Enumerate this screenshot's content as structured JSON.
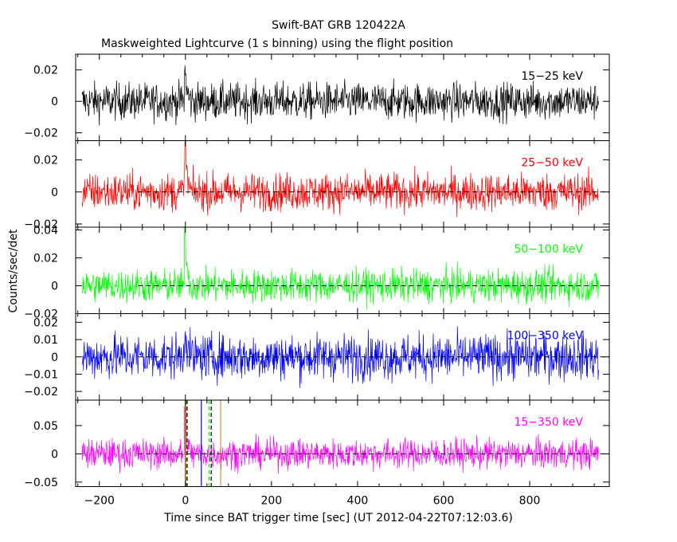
{
  "title": "Swift-BAT GRB 120422A",
  "subtitle": "Maskweighted Lightcurve (1 s binning) using the flight position",
  "chart_data": {
    "type": "line",
    "title": "Swift-BAT GRB 120422A",
    "subtitle": "Maskweighted Lightcurve (1 s binning) using the flight position",
    "xlabel": "Time since BAT trigger time [sec] (UT 2012-04-22T07:12:03.6)",
    "ylabel": "Counts/sec/det",
    "xlim": [
      -255,
      985
    ],
    "x_start": -240,
    "x_end": 960,
    "bin_width_sec": 1,
    "x_ticks": [
      -200,
      0,
      200,
      400,
      600,
      800
    ],
    "x_tick_labels": [
      "−200",
      "0",
      "200",
      "400",
      "600",
      "800"
    ],
    "panels": [
      {
        "band": "15-25 keV",
        "label": "15−25 keV",
        "color": "#000000",
        "ylim": [
          -0.025,
          0.03
        ],
        "y_ticks": [
          -0.02,
          0,
          0.02
        ],
        "y_tick_labels": [
          "−0.02",
          "0",
          "0.02"
        ],
        "noise_sigma": 0.0058,
        "peak_at_trigger": 0.018,
        "extent": [
          -240,
          960
        ]
      },
      {
        "band": "25-50 keV",
        "label": "25−50 keV",
        "color": "#ff0000",
        "ylim": [
          -0.022,
          0.032
        ],
        "y_ticks": [
          -0.02,
          0,
          0.02
        ],
        "y_tick_labels": [
          "−0.02",
          "0",
          "0.02"
        ],
        "noise_sigma": 0.0058,
        "peak_at_trigger": 0.029,
        "extent": [
          -240,
          960
        ]
      },
      {
        "band": "50-100 keV",
        "label": "50−100 keV",
        "color": "#00ff00",
        "ylim": [
          -0.02,
          0.042
        ],
        "y_ticks": [
          -0.02,
          0,
          0.02,
          0.04
        ],
        "y_tick_labels": [
          "−0.02",
          "0",
          "0.02",
          "0.04"
        ],
        "noise_sigma": 0.0058,
        "peak_at_trigger": 0.038,
        "extent": [
          -240,
          960
        ]
      },
      {
        "band": "100-350 keV",
        "label": "100−350 keV",
        "color": "#0000ff",
        "ylim": [
          -0.025,
          0.025
        ],
        "y_ticks": [
          -0.02,
          -0.01,
          0,
          0.01,
          0.02
        ],
        "y_tick_labels": [
          "−0.02",
          "−0.01",
          "0",
          "0.01",
          "0.02"
        ],
        "noise_sigma": 0.0065,
        "peak_at_trigger": 0.018,
        "extent": [
          -240,
          960
        ]
      },
      {
        "band": "15-350 keV",
        "label": "15−350 keV",
        "color": "#ff00ff",
        "ylim": [
          -0.058,
          0.095
        ],
        "y_ticks": [
          -0.05,
          0,
          0.05
        ],
        "y_tick_labels": [
          "−0.05",
          "0",
          "0.05"
        ],
        "noise_sigma": 0.013,
        "peak_at_trigger": 0.075,
        "extent": [
          -240,
          960
        ]
      }
    ],
    "zero_line": {
      "style": "dashed",
      "from_x": -110,
      "color": "#000000"
    },
    "markers": [
      {
        "x": 0,
        "color": "#ff0000",
        "style": "solid"
      },
      {
        "x": 2,
        "color": "#00ff00",
        "style": "dashed"
      },
      {
        "x": 4,
        "color": "#000000",
        "style": "dashed"
      },
      {
        "x": 37,
        "color": "#0000ff",
        "style": "solid"
      },
      {
        "x": 55,
        "color": "#00ff00",
        "style": "dashed"
      },
      {
        "x": 60,
        "color": "#000000",
        "style": "dashed"
      },
      {
        "x": 82,
        "color": "#d2914a",
        "style": "solid"
      }
    ],
    "grid": false,
    "legend": "per-panel label, top-right"
  }
}
